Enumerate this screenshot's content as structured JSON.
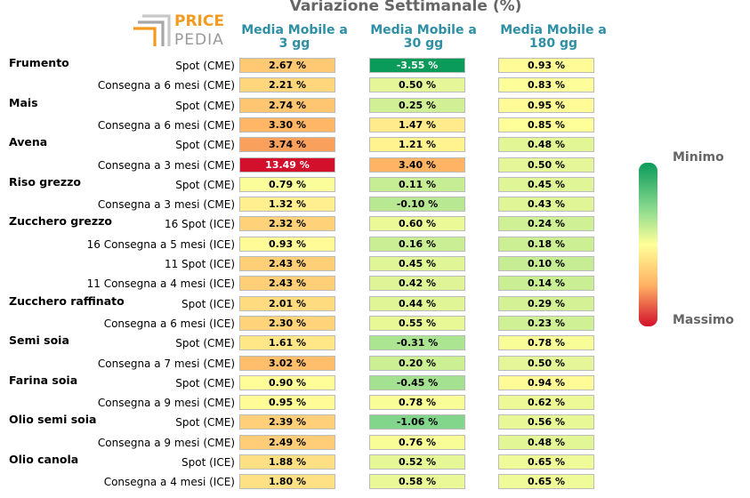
{
  "brand": {
    "line1": "PRICE",
    "line2": "PEDIA"
  },
  "chart_data": {
    "type": "heatmap",
    "title": "Variazione Settimanale (%)",
    "columns": [
      "Media Mobile a 3 gg",
      "Media Mobile a 30 gg",
      "Media Mobile a 180 gg"
    ],
    "legend": {
      "min_label": "Minimo",
      "max_label": "Massimo"
    },
    "colors": {
      "min": "#0a9a5a",
      "mid": "#ffff99",
      "max": "#d2102c",
      "header": "#2e8fa5"
    },
    "rows": [
      {
        "commodity": "Frumento",
        "label": "Spot (CME)",
        "values": [
          2.67,
          -3.55,
          0.93
        ],
        "display": [
          "2.67 %",
          "-3.55 %",
          "0.93 %"
        ]
      },
      {
        "commodity": "",
        "label": "Consegna a 6 mesi (CME)",
        "values": [
          2.21,
          0.5,
          0.83
        ],
        "display": [
          "2.21 %",
          "0.50 %",
          "0.83 %"
        ]
      },
      {
        "commodity": "Mais",
        "label": "Spot (CME)",
        "values": [
          2.74,
          0.25,
          0.95
        ],
        "display": [
          "2.74 %",
          "0.25 %",
          "0.95 %"
        ]
      },
      {
        "commodity": "",
        "label": "Consegna a 6 mesi (CME)",
        "values": [
          3.3,
          1.47,
          0.85
        ],
        "display": [
          "3.30 %",
          "1.47 %",
          "0.85 %"
        ]
      },
      {
        "commodity": "Avena",
        "label": "Spot (CME)",
        "values": [
          3.74,
          1.21,
          0.48
        ],
        "display": [
          "3.74 %",
          "1.21 %",
          "0.48 %"
        ]
      },
      {
        "commodity": "",
        "label": "Consegna a 3 mesi (CME)",
        "values": [
          13.49,
          3.4,
          0.5
        ],
        "display": [
          "13.49 %",
          "3.40 %",
          "0.50 %"
        ]
      },
      {
        "commodity": "Riso grezzo",
        "label": "Spot (CME)",
        "values": [
          0.79,
          0.11,
          0.45
        ],
        "display": [
          "0.79 %",
          "0.11 %",
          "0.45 %"
        ]
      },
      {
        "commodity": "",
        "label": "Consegna a 3 mesi (CME)",
        "values": [
          1.32,
          -0.1,
          0.43
        ],
        "display": [
          "1.32 %",
          "-0.10 %",
          "0.43 %"
        ]
      },
      {
        "commodity": "Zucchero grezzo",
        "label": "16 Spot (ICE)",
        "values": [
          2.32,
          0.6,
          0.24
        ],
        "display": [
          "2.32 %",
          "0.60 %",
          "0.24 %"
        ]
      },
      {
        "commodity": "",
        "label": "16 Consegna a 5 mesi (ICE)",
        "values": [
          0.93,
          0.16,
          0.18
        ],
        "display": [
          "0.93 %",
          "0.16 %",
          "0.18 %"
        ]
      },
      {
        "commodity": "",
        "label": "11 Spot (ICE)",
        "values": [
          2.43,
          0.45,
          0.1
        ],
        "display": [
          "2.43 %",
          "0.45 %",
          "0.10 %"
        ]
      },
      {
        "commodity": "",
        "label": "11 Consegna a 4 mesi (ICE)",
        "values": [
          2.43,
          0.42,
          0.14
        ],
        "display": [
          "2.43 %",
          "0.42 %",
          "0.14 %"
        ]
      },
      {
        "commodity": "Zucchero raffinato",
        "label": "Spot (ICE)",
        "values": [
          2.01,
          0.44,
          0.29
        ],
        "display": [
          "2.01 %",
          "0.44 %",
          "0.29 %"
        ]
      },
      {
        "commodity": "",
        "label": "Consegna a 6 mesi (ICE)",
        "values": [
          2.3,
          0.55,
          0.23
        ],
        "display": [
          "2.30 %",
          "0.55 %",
          "0.23 %"
        ]
      },
      {
        "commodity": "Semi soia",
        "label": "Spot (CME)",
        "values": [
          1.61,
          -0.31,
          0.78
        ],
        "display": [
          "1.61 %",
          "-0.31 %",
          "0.78 %"
        ]
      },
      {
        "commodity": "",
        "label": "Consegna a 7 mesi (CME)",
        "values": [
          3.02,
          0.2,
          0.5
        ],
        "display": [
          "3.02 %",
          "0.20 %",
          "0.50 %"
        ]
      },
      {
        "commodity": "Farina soia",
        "label": "Spot (CME)",
        "values": [
          0.9,
          -0.45,
          0.94
        ],
        "display": [
          "0.90 %",
          "-0.45 %",
          "0.94 %"
        ]
      },
      {
        "commodity": "",
        "label": "Consegna a 9 mesi (CME)",
        "values": [
          0.95,
          0.78,
          0.62
        ],
        "display": [
          "0.95 %",
          "0.78 %",
          "0.62 %"
        ]
      },
      {
        "commodity": "Olio semi soia",
        "label": "Spot (CME)",
        "values": [
          2.39,
          -1.06,
          0.56
        ],
        "display": [
          "2.39 %",
          "-1.06 %",
          "0.56 %"
        ]
      },
      {
        "commodity": "",
        "label": "Consegna a 9 mesi (CME)",
        "values": [
          2.49,
          0.76,
          0.48
        ],
        "display": [
          "2.49 %",
          "0.76 %",
          "0.48 %"
        ]
      },
      {
        "commodity": "Olio canola",
        "label": "Spot (ICE)",
        "values": [
          1.88,
          0.52,
          0.65
        ],
        "display": [
          "1.88 %",
          "0.52 %",
          "0.65 %"
        ]
      },
      {
        "commodity": "",
        "label": "Consegna a 4 mesi (ICE)",
        "values": [
          1.8,
          0.58,
          0.65
        ],
        "display": [
          "1.80 %",
          "0.58 %",
          "0.65 %"
        ]
      }
    ]
  }
}
